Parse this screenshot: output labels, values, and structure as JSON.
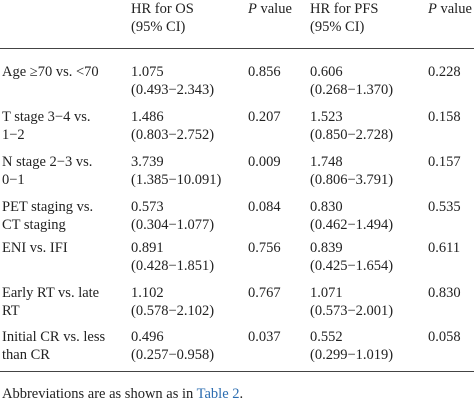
{
  "headers": {
    "hr_os_line1": "HR for OS",
    "hr_os_line2": "(95% CI)",
    "p_label": "P",
    "p_suffix": " value",
    "hr_pfs_line1": "HR for PFS",
    "hr_pfs_line2": "(95% CI)"
  },
  "rows": [
    {
      "label1": "Age ≥70 vs. <70",
      "label2": "",
      "hr_os": "1.075",
      "ci_os": "(0.493−2.343)",
      "p_os": "0.856",
      "hr_pfs": "0.606",
      "ci_pfs": "(0.268−1.370)",
      "p_pfs": "0.228"
    },
    {
      "label1": "T stage 3−4 vs.",
      "label2": "1−2",
      "hr_os": "1.486",
      "ci_os": "(0.803−2.752)",
      "p_os": "0.207",
      "hr_pfs": "1.523",
      "ci_pfs": "(0.850−2.728)",
      "p_pfs": "0.158"
    },
    {
      "label1": "N stage 2−3 vs.",
      "label2": "0−1",
      "hr_os": "3.739",
      "ci_os": "(1.385−10.091)",
      "p_os": "0.009",
      "hr_pfs": "1.748",
      "ci_pfs": "(0.806−3.791)",
      "p_pfs": "0.157"
    },
    {
      "label1": "PET staging vs.",
      "label2": "CT staging",
      "hr_os": "0.573",
      "ci_os": "(0.304−1.077)",
      "p_os": "0.084",
      "hr_pfs": "0.830",
      "ci_pfs": "(0.462−1.494)",
      "p_pfs": "0.535"
    },
    {
      "label1": "ENI vs. IFI",
      "label2": "",
      "hr_os": "0.891",
      "ci_os": "(0.428−1.851)",
      "p_os": "0.756",
      "hr_pfs": "0.839",
      "ci_pfs": "(0.425−1.654)",
      "p_pfs": "0.611"
    },
    {
      "label1": "Early RT vs. late",
      "label2": "RT",
      "hr_os": "1.102",
      "ci_os": "(0.578−2.102)",
      "p_os": "0.767",
      "hr_pfs": "1.071",
      "ci_pfs": "(0.573−2.001)",
      "p_pfs": "0.830"
    },
    {
      "label1": "Initial CR vs. less",
      "label2": "than CR",
      "hr_os": "0.496",
      "ci_os": "(0.257−0.958)",
      "p_os": "0.037",
      "hr_pfs": "0.552",
      "ci_pfs": "(0.299−1.019)",
      "p_pfs": "0.058"
    }
  ],
  "footnote": {
    "text": "Abbreviations are as shown as in ",
    "link": "Table 2",
    "end": "."
  }
}
